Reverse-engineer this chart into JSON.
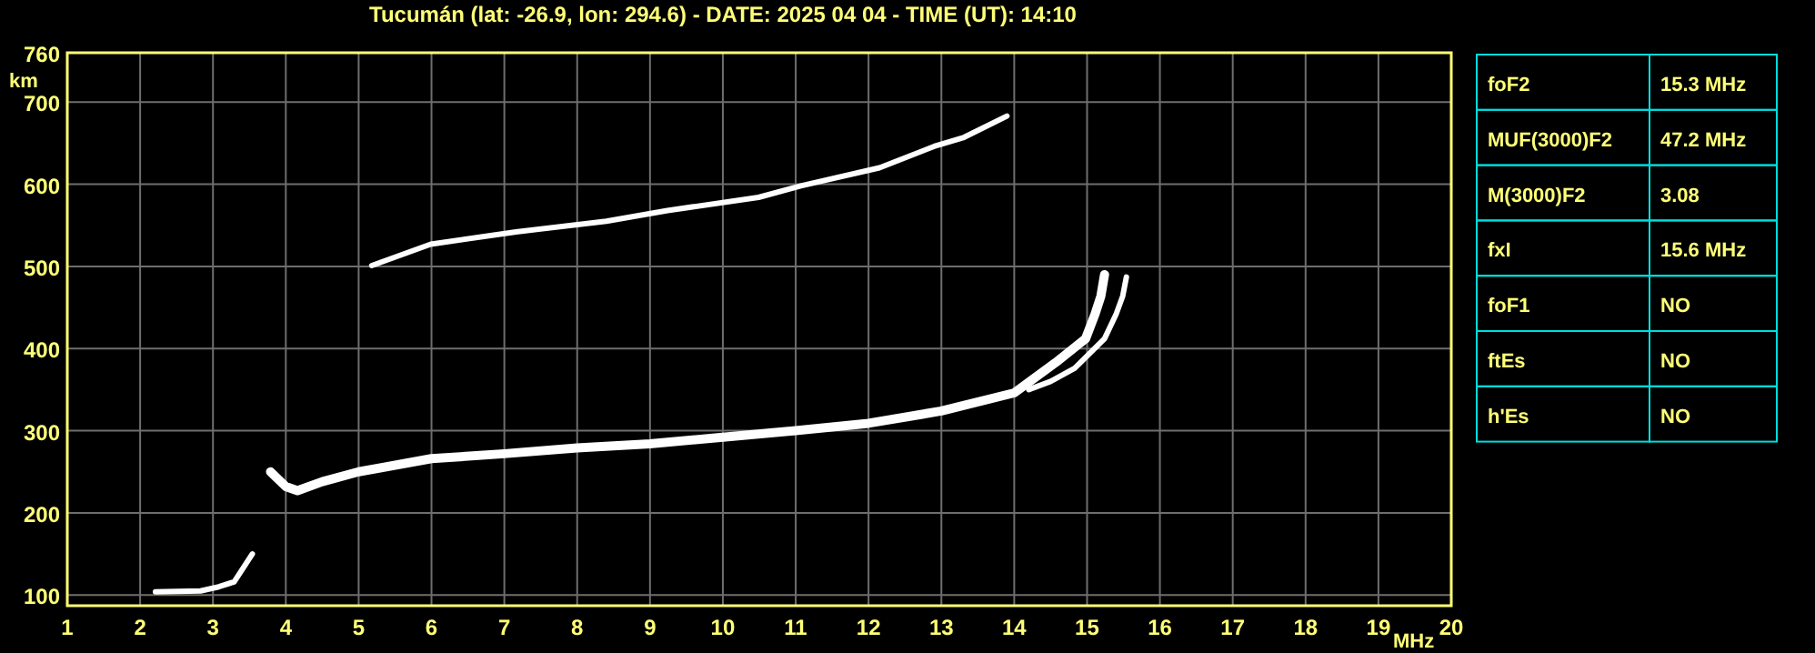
{
  "chart_data": [
    {
      "type": "line",
      "title": "Tucumán (lat: -26.9, lon: 294.6) - DATE: 2025 04 04 - TIME (UT): 14:10",
      "xlabel": "MHz",
      "ylabel": "km",
      "xlim": [
        1,
        20
      ],
      "ylim": [
        87,
        760
      ],
      "xticks": [
        1,
        2,
        3,
        4,
        5,
        6,
        7,
        8,
        9,
        10,
        11,
        12,
        13,
        14,
        15,
        16,
        17,
        18,
        19,
        20
      ],
      "yticks": [
        100,
        200,
        300,
        400,
        500,
        600,
        700,
        760
      ],
      "grid": true,
      "line_style": "solid",
      "series": [
        {
          "color": "#ffffff",
          "x": [
            3.79,
            4.0,
            4.16,
            4.5,
            5.0,
            6.0,
            7.0,
            8.0,
            9.0,
            10.0,
            11.0,
            12.0,
            13.0,
            14.0,
            14.57,
            14.98,
            15.11,
            15.19,
            15.24
          ],
          "values": [
            250,
            232,
            227,
            238,
            250,
            266,
            272,
            279,
            284,
            292,
            300,
            309,
            324,
            346,
            383,
            412,
            442,
            464,
            490
          ]
        },
        {
          "color": "#ffffff",
          "x": [
            14.2,
            14.5,
            14.83,
            15.24,
            15.4,
            15.49,
            15.54
          ],
          "values": [
            350,
            360,
            376,
            412,
            442,
            464,
            487
          ]
        },
        {
          "color": "#ffffff",
          "x": [
            5.18,
            5.99,
            7.16,
            8.4,
            9.24,
            10.49,
            11.07,
            12.15,
            12.9,
            13.31,
            13.9
          ],
          "values": [
            501,
            527,
            542,
            555,
            568,
            584,
            598,
            620,
            646,
            657,
            683
          ]
        },
        {
          "color": "#ffffff",
          "x": [
            2.21,
            2.83,
            3.08,
            3.29,
            3.54
          ],
          "values": [
            104,
            105,
            110,
            116,
            150
          ]
        }
      ]
    },
    {
      "type": "other",
      "y_categories": [
        "foF2",
        "MUF(3000)F2",
        "M(3000)F2",
        "fxI",
        "foF1",
        "ftEs",
        "h'Es"
      ],
      "cell_labels": [
        [
          "15.3 MHz"
        ],
        [
          "47.2 MHz"
        ],
        [
          "3.08"
        ],
        [
          "15.6 MHz"
        ],
        [
          "NO"
        ],
        [
          "NO"
        ],
        [
          "NO"
        ]
      ]
    }
  ]
}
